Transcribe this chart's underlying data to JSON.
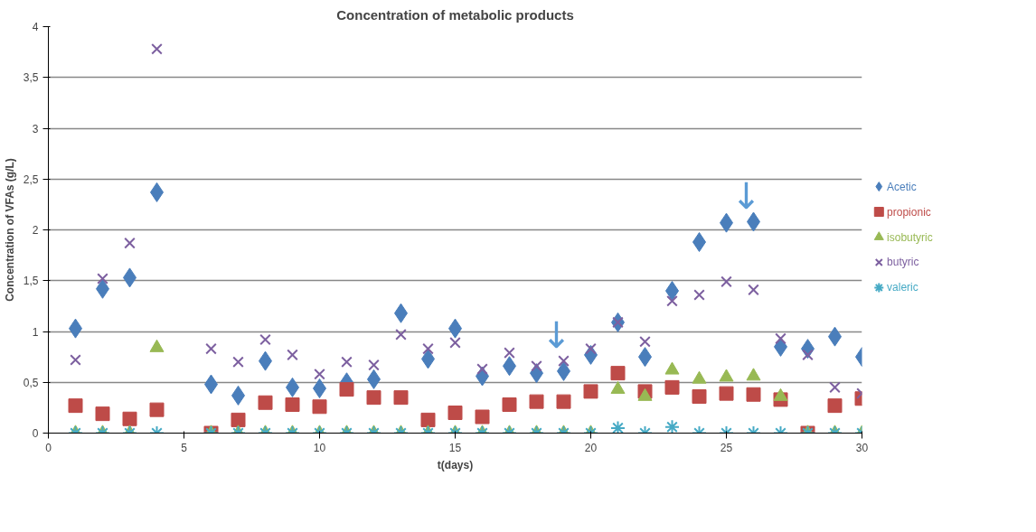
{
  "chart_data": {
    "type": "scatter",
    "title": "Concentration of metabolic products",
    "xlabel": "t(days)",
    "ylabel": "Concentration of VFAs (g/L)",
    "x": [
      1,
      2,
      3,
      4,
      6,
      7,
      8,
      9,
      10,
      11,
      12,
      13,
      14,
      15,
      16,
      17,
      18,
      19,
      20,
      21,
      22,
      23,
      24,
      25,
      26,
      27,
      28,
      29,
      30
    ],
    "series": [
      {
        "name": "Acetic",
        "color": "#4a7ebb",
        "marker": "diamond",
        "values": [
          1.03,
          1.42,
          1.53,
          2.37,
          0.48,
          0.37,
          0.71,
          0.45,
          0.44,
          0.5,
          0.53,
          1.18,
          0.73,
          1.03,
          0.56,
          0.66,
          0.59,
          0.61,
          0.77,
          1.09,
          0.75,
          1.4,
          1.88,
          2.07,
          2.08,
          0.85,
          0.83,
          0.95,
          0.75
        ]
      },
      {
        "name": "propionic",
        "color": "#be4b48",
        "marker": "square",
        "values": [
          0.27,
          0.19,
          0.14,
          0.23,
          0,
          0.13,
          0.3,
          0.28,
          0.26,
          0.43,
          0.35,
          0.35,
          0.13,
          0.2,
          0.16,
          0.28,
          0.31,
          0.31,
          0.41,
          0.59,
          0.41,
          0.45,
          0.36,
          0.39,
          0.38,
          0.33,
          0,
          0.27,
          0.34
        ]
      },
      {
        "name": "isobutyric",
        "color": "#98b954",
        "marker": "triangle",
        "values": [
          0,
          0,
          0,
          0.84,
          0,
          0,
          0,
          0,
          0,
          0,
          0,
          0,
          0,
          0,
          0,
          0,
          0,
          0,
          0,
          0.43,
          0.36,
          0.62,
          0.53,
          0.55,
          0.56,
          0.36,
          0,
          0,
          0
        ]
      },
      {
        "name": "butyric",
        "color": "#7d60a0",
        "marker": "cross",
        "values": [
          0.72,
          1.52,
          1.87,
          3.78,
          0.83,
          0.7,
          0.92,
          0.77,
          0.58,
          0.7,
          0.67,
          0.97,
          0.83,
          0.89,
          0.63,
          0.79,
          0.66,
          0.71,
          0.83,
          1.09,
          0.9,
          1.3,
          1.36,
          1.49,
          1.41,
          0.93,
          0.77,
          0.45,
          0.39
        ]
      },
      {
        "name": "valeric",
        "color": "#46aac5",
        "marker": "cross",
        "values": [
          0,
          0,
          0,
          0,
          0,
          0,
          0,
          0,
          0,
          0,
          0,
          0,
          0,
          0,
          0,
          0,
          0,
          0,
          0,
          0.05,
          0,
          0.06,
          0,
          0,
          0,
          0,
          0,
          0,
          0
        ]
      }
    ],
    "annotations": [
      {
        "text": "↓",
        "x": 19,
        "y": 0.71
      },
      {
        "text": "↓",
        "x": 26,
        "y": 2.08
      }
    ],
    "xlim": [
      0,
      30
    ],
    "ylim": [
      0,
      4
    ],
    "xticks": [
      0,
      5,
      10,
      15,
      20,
      25,
      30
    ],
    "yticks": [
      0,
      {
        "value": 0.5,
        "label": "0,5"
      },
      1,
      {
        "value": 1.5,
        "label": "1,5"
      },
      2,
      {
        "value": 2.5,
        "label": "2,5"
      },
      3,
      {
        "value": 3.5,
        "label": "3,5"
      },
      4
    ],
    "grid": "y",
    "legend": "right"
  }
}
